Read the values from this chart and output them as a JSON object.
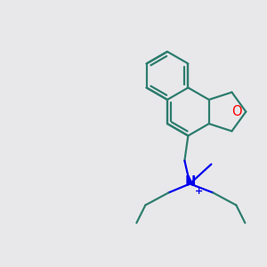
{
  "bg_color": "#e8e8eb",
  "bond_color": "#2d7d6e",
  "O_color": "#ff0000",
  "N_color": "#0000ee",
  "line_width": 1.6,
  "font_size_atom": 10.5
}
